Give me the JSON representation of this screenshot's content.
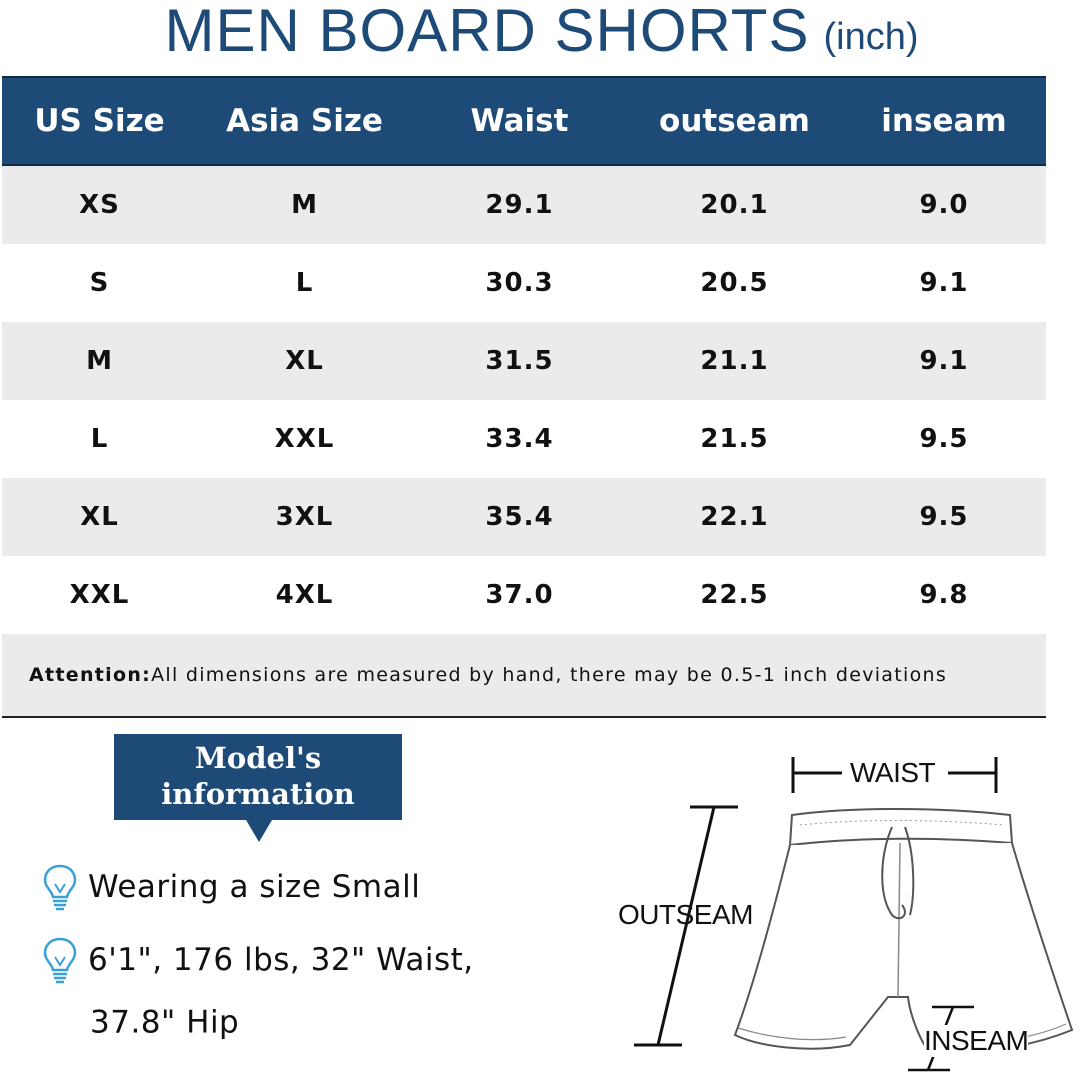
{
  "title": {
    "main": "MEN BOARD SHORTS",
    "unit": "(inch)"
  },
  "colors": {
    "accent": "#1e4a78",
    "row_shade": "#ebebeb",
    "bulb": "#3aa0d8"
  },
  "table": {
    "headers": [
      "US Size",
      "Asia Size",
      "Waist",
      "outseam",
      "inseam"
    ],
    "rows": [
      [
        "XS",
        "M",
        "29.1",
        "20.1",
        "9.0"
      ],
      [
        "S",
        "L",
        "30.3",
        "20.5",
        "9.1"
      ],
      [
        "M",
        "XL",
        "31.5",
        "21.1",
        "9.1"
      ],
      [
        "L",
        "XXL",
        "33.4",
        "21.5",
        "9.5"
      ],
      [
        "XL",
        "3XL",
        "35.4",
        "22.1",
        "9.5"
      ],
      [
        "XXL",
        "4XL",
        "37.0",
        "22.5",
        "9.8"
      ]
    ],
    "note_label": "Attention:",
    "note_text": " All dimensions are measured by hand, there may be 0.5-1 inch deviations"
  },
  "model": {
    "title_line1": "Model's",
    "title_line2": "information",
    "line1": "Wearing a size Small",
    "line2a": "6'1\", 176 lbs, 32\" Waist,",
    "line2b": "37.8\" Hip",
    "icon": "lightbulb-icon"
  },
  "diagram": {
    "waist": "WAIST",
    "outseam": "OUTSEAM",
    "inseam": "INSEAM"
  }
}
